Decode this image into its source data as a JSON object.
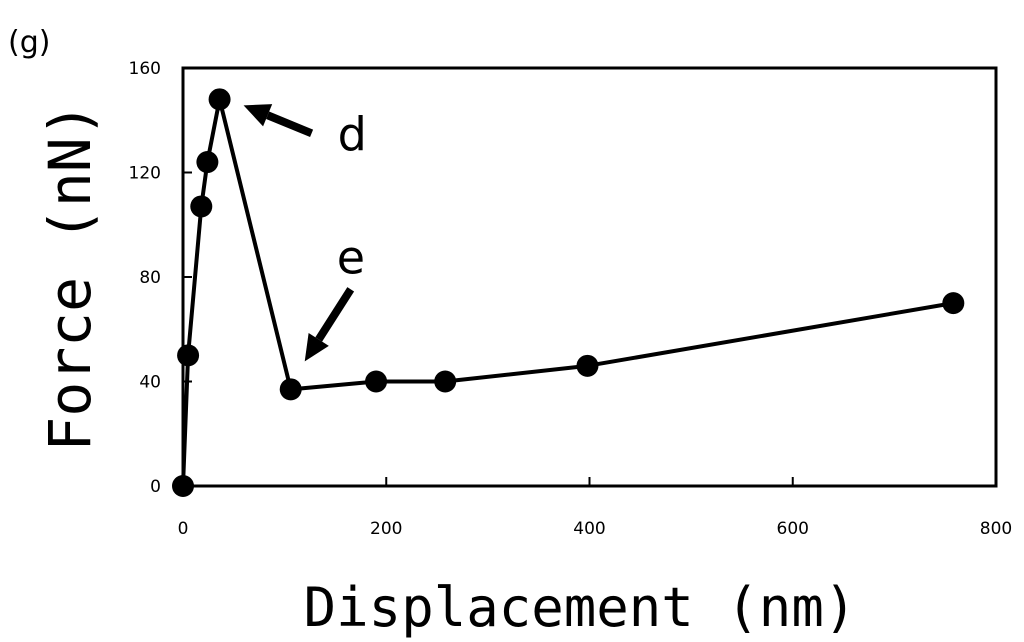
{
  "chart_data": {
    "type": "line",
    "panel_label": "(g)",
    "title": "",
    "xlabel": "Displacement (nm)",
    "ylabel": "Force (nN)",
    "xlim": [
      0,
      800
    ],
    "ylim": [
      0,
      160
    ],
    "xticks": [
      0,
      200,
      400,
      600,
      800
    ],
    "yticks": [
      0,
      40,
      80,
      120,
      160
    ],
    "grid": false,
    "series": [
      {
        "x": [
          0,
          5,
          18,
          24,
          36,
          106,
          190,
          258,
          398,
          758
        ],
        "y": [
          0,
          50,
          107,
          124,
          148,
          37,
          40,
          40,
          46,
          70
        ]
      }
    ],
    "annotations": [
      {
        "text": "d",
        "x": 36,
        "y": 148
      },
      {
        "text": "e",
        "x": 106,
        "y": 37
      }
    ],
    "colors": {
      "line": "#000000",
      "marker": "#000000",
      "frame": "#000000"
    }
  }
}
